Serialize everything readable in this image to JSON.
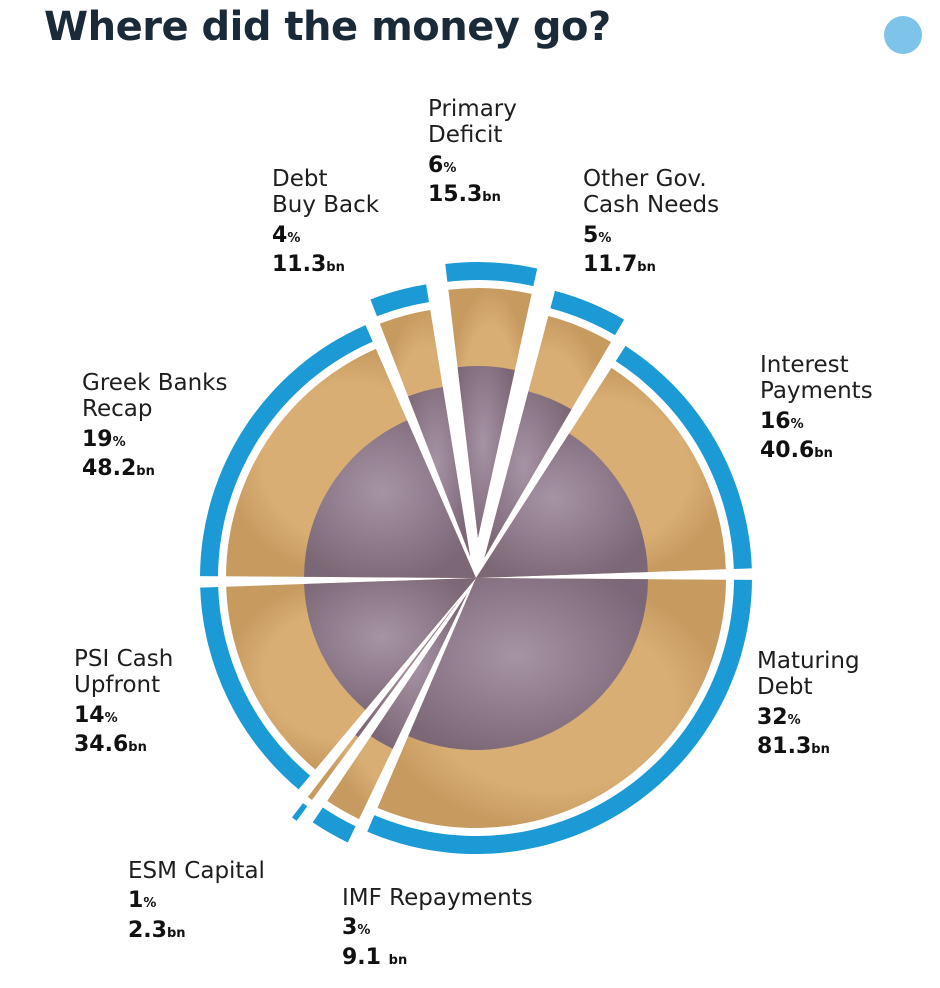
{
  "title": "Where did the money go?",
  "colors": {
    "ring": "#1b9ad6",
    "coin_outer": "#c79a60",
    "coin_inner": "#7c6777",
    "title": "#1a2a38"
  },
  "chart_data": {
    "type": "pie",
    "title": "Where did the money go?",
    "unit": "bn",
    "slices": [
      {
        "id": "primary-deficit",
        "label": "Primary\nDeficit",
        "percent": 6,
        "value": 15.3,
        "value_text": "15.3"
      },
      {
        "id": "other-gov",
        "label": "Other Gov.\nCash Needs",
        "percent": 5,
        "value": 11.7,
        "value_text": "11.7"
      },
      {
        "id": "interest",
        "label": "Interest\nPayments",
        "percent": 16,
        "value": 40.6,
        "value_text": "40.6"
      },
      {
        "id": "maturing-debt",
        "label": "Maturing\nDebt",
        "percent": 32,
        "value": 81.3,
        "value_text": "81.3"
      },
      {
        "id": "imf",
        "label": "IMF Repayments",
        "percent": 3,
        "value": 9.1,
        "value_text": "9.1 "
      },
      {
        "id": "esm",
        "label": "ESM Capital",
        "percent": 1,
        "value": 2.3,
        "value_text": "2.3"
      },
      {
        "id": "psi",
        "label": "PSI Cash\nUpfront",
        "percent": 14,
        "value": 34.6,
        "value_text": "34.6"
      },
      {
        "id": "greek-banks",
        "label": "Greek Banks\nRecap",
        "percent": 19,
        "value": 48.2,
        "value_text": "48.2"
      },
      {
        "id": "debt-buyback",
        "label": "Debt\nBuy Back",
        "percent": 4,
        "value": 11.3,
        "value_text": "11.3"
      }
    ]
  }
}
